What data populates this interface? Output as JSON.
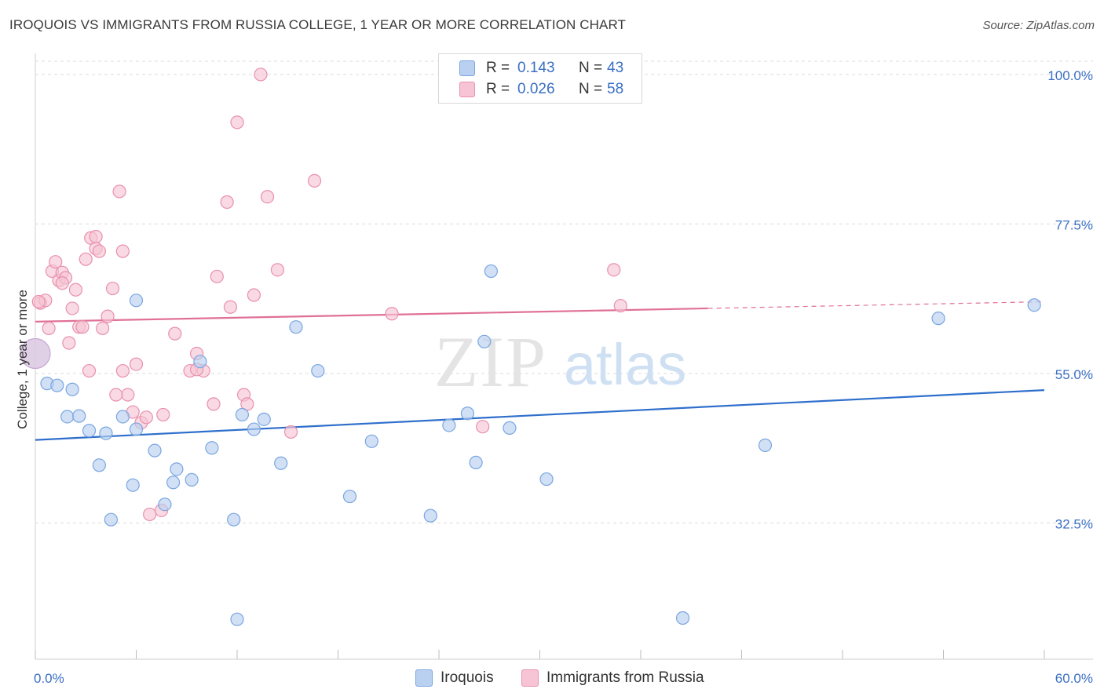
{
  "header": {
    "title": "IROQUOIS VS IMMIGRANTS FROM RUSSIA COLLEGE, 1 YEAR OR MORE CORRELATION CHART",
    "source": "Source: ZipAtlas.com"
  },
  "legend": {
    "series1": {
      "r_label": "R =",
      "r_value": "0.143",
      "n_label": "N =",
      "n_value": "43"
    },
    "series2": {
      "r_label": "R =",
      "r_value": "0.026",
      "n_label": "N =",
      "n_value": "58"
    }
  },
  "bottom_legend": {
    "series1_name": "Iroquois",
    "series2_name": "Immigrants from Russia"
  },
  "watermark": {
    "part1": "ZIP",
    "part2": "atlas"
  },
  "colors": {
    "blue_fill": "#b9d0f0",
    "blue_stroke": "#7aa6e0",
    "blue_line": "#2f6fcc",
    "pink_fill": "#f6c4d4",
    "pink_stroke": "#e990ad",
    "pink_line": "#e07098",
    "tick_label": "#3a6fc4",
    "grid": "#dcdcdc"
  },
  "chart_data": {
    "type": "scatter",
    "title": "IROQUOIS VS IMMIGRANTS FROM RUSSIA COLLEGE, 1 YEAR OR MORE CORRELATION CHART",
    "xlabel": "",
    "ylabel": "College, 1 year or more",
    "xlim": [
      0,
      60
    ],
    "ylim": [
      12,
      102
    ],
    "x_tick_labels": [
      "0.0%",
      "60.0%"
    ],
    "y_ticks": [
      32.5,
      55.0,
      77.5,
      100.0
    ],
    "y_tick_labels": [
      "32.5%",
      "55.0%",
      "77.5%",
      "100.0%"
    ],
    "grid": true,
    "series": [
      {
        "name": "Iroquois",
        "color": "#7aa6e0",
        "R": 0.143,
        "N": 43,
        "trend": {
          "x0": 0,
          "y0": 45.0,
          "x1": 60,
          "y1": 52.5
        },
        "points": [
          [
            0.0,
            58.0
          ],
          [
            0.7,
            53.5
          ],
          [
            1.3,
            53.2
          ],
          [
            2.2,
            52.6
          ],
          [
            1.9,
            48.5
          ],
          [
            2.6,
            48.6
          ],
          [
            3.2,
            46.4
          ],
          [
            4.2,
            46.0
          ],
          [
            3.8,
            41.2
          ],
          [
            5.2,
            48.5
          ],
          [
            6.0,
            46.6
          ],
          [
            6.0,
            66.0
          ],
          [
            5.8,
            38.2
          ],
          [
            7.1,
            43.4
          ],
          [
            7.7,
            35.3
          ],
          [
            8.4,
            40.6
          ],
          [
            8.2,
            38.6
          ],
          [
            9.3,
            39.0
          ],
          [
            9.8,
            56.8
          ],
          [
            10.5,
            43.8
          ],
          [
            11.8,
            33.0
          ],
          [
            13.0,
            46.6
          ],
          [
            12.3,
            48.8
          ],
          [
            13.6,
            48.1
          ],
          [
            12.0,
            18.0
          ],
          [
            14.6,
            41.5
          ],
          [
            15.5,
            62.0
          ],
          [
            16.8,
            55.4
          ],
          [
            20.0,
            44.8
          ],
          [
            18.7,
            36.5
          ],
          [
            23.5,
            33.6
          ],
          [
            24.6,
            47.2
          ],
          [
            25.7,
            49.0
          ],
          [
            26.2,
            41.6
          ],
          [
            26.7,
            59.8
          ],
          [
            27.1,
            70.4
          ],
          [
            28.2,
            46.8
          ],
          [
            30.4,
            39.1
          ],
          [
            38.5,
            18.2
          ],
          [
            43.4,
            44.2
          ],
          [
            53.7,
            63.3
          ],
          [
            59.4,
            65.3
          ],
          [
            4.5,
            33.0
          ]
        ]
      },
      {
        "name": "Immigrants from Russia",
        "color": "#e990ad",
        "R": 0.026,
        "N": 58,
        "trend": {
          "x0": 0,
          "y0": 62.8,
          "x1": 40,
          "y1": 64.8,
          "dashed_to_x": 60,
          "dashed_to_y": 65.8
        },
        "points": [
          [
            0.3,
            65.6
          ],
          [
            0.6,
            66.0
          ],
          [
            0.8,
            61.8
          ],
          [
            1.0,
            70.4
          ],
          [
            1.2,
            71.8
          ],
          [
            1.4,
            69.0
          ],
          [
            1.6,
            70.2
          ],
          [
            1.8,
            69.4
          ],
          [
            2.0,
            59.6
          ],
          [
            2.2,
            64.8
          ],
          [
            2.4,
            67.6
          ],
          [
            2.6,
            62.0
          ],
          [
            2.8,
            62.0
          ],
          [
            3.0,
            72.2
          ],
          [
            3.3,
            75.4
          ],
          [
            3.6,
            73.8
          ],
          [
            3.8,
            73.4
          ],
          [
            4.0,
            61.8
          ],
          [
            4.3,
            63.6
          ],
          [
            4.6,
            67.8
          ],
          [
            5.0,
            82.4
          ],
          [
            5.2,
            73.4
          ],
          [
            5.5,
            51.8
          ],
          [
            5.8,
            49.2
          ],
          [
            5.2,
            55.4
          ],
          [
            6.0,
            56.4
          ],
          [
            6.3,
            47.6
          ],
          [
            6.6,
            48.4
          ],
          [
            6.8,
            33.8
          ],
          [
            7.5,
            34.4
          ],
          [
            8.3,
            61.0
          ],
          [
            9.2,
            55.4
          ],
          [
            9.6,
            58.0
          ],
          [
            10.0,
            55.4
          ],
          [
            10.6,
            50.4
          ],
          [
            10.8,
            69.6
          ],
          [
            11.4,
            80.8
          ],
          [
            11.6,
            65.0
          ],
          [
            12.0,
            92.8
          ],
          [
            12.4,
            51.8
          ],
          [
            12.6,
            50.4
          ],
          [
            13.0,
            66.8
          ],
          [
            13.4,
            100.0
          ],
          [
            13.8,
            81.6
          ],
          [
            14.4,
            70.6
          ],
          [
            15.2,
            46.2
          ],
          [
            16.6,
            84.0
          ],
          [
            21.2,
            64.0
          ],
          [
            26.6,
            47.0
          ],
          [
            34.4,
            70.6
          ],
          [
            34.8,
            65.2
          ],
          [
            0.2,
            65.8
          ],
          [
            3.2,
            55.4
          ],
          [
            4.8,
            51.8
          ],
          [
            7.6,
            48.8
          ],
          [
            9.6,
            55.6
          ],
          [
            3.6,
            75.6
          ],
          [
            1.6,
            68.6
          ]
        ]
      }
    ]
  }
}
